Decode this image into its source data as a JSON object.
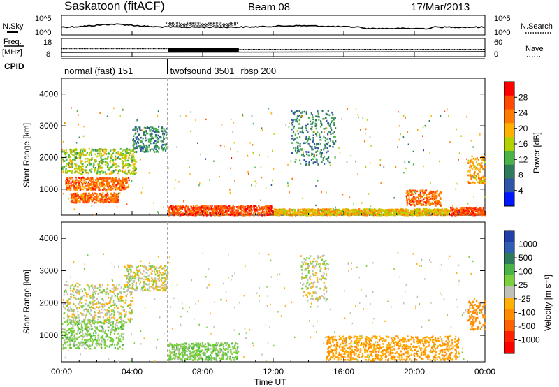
{
  "header": {
    "title": "Saskatoon (fitACF)",
    "beam": "Beam 08",
    "date": "17/Mar/2013"
  },
  "top_panel": {
    "left_label": "N.Sky",
    "left_ticks": [
      "10^5",
      "10^0"
    ],
    "right_ticks": [
      "10^5",
      "10^0"
    ],
    "right_label": "N.Search"
  },
  "freq_panel": {
    "left_label_1": "Freq.",
    "left_label_2": "[MHz]",
    "left_ticks": [
      "18",
      "8"
    ],
    "right_ticks": [
      "60",
      "0"
    ],
    "right_label": "Nave"
  },
  "cpid": {
    "label": "CPID",
    "segments": [
      {
        "name": "normal (fast) 151",
        "start_hour": 0
      },
      {
        "name": "twofsound 3501",
        "start_hour": 6
      },
      {
        "name": "rbsp 200",
        "start_hour": 10
      }
    ]
  },
  "power_panel": {
    "ylabel": "Slant Range [km]",
    "yticks": [
      "1000",
      "2000",
      "3000",
      "4000"
    ],
    "colorbar_label": "Power [dB]",
    "colorbar_ticks": [
      "28",
      "24",
      "20",
      "16",
      "12",
      "8",
      "4"
    ],
    "colors": [
      "#ff0000",
      "#ff4a00",
      "#ff7a00",
      "#ffb000",
      "#b2d200",
      "#49b34a",
      "#2e7a5a",
      "#2f55a6",
      "#0016ff"
    ]
  },
  "velocity_panel": {
    "ylabel": "Slant Range [km]",
    "yticks": [
      "1000",
      "2000",
      "3000",
      "4000"
    ],
    "colorbar_label": "Velocity [m s⁻¹]",
    "colorbar_ticks": [
      "1000",
      "500",
      "100",
      "25",
      "-25",
      "-100",
      "-500",
      "-1000"
    ],
    "colors": [
      "#2040a8",
      "#2f5eb2",
      "#2e7a5a",
      "#49b34a",
      "#7ad03a",
      "#c0c0b8",
      "#ffb000",
      "#ff8c00",
      "#ff6000",
      "#ff2000",
      "#ff0000"
    ]
  },
  "x_axis": {
    "ticks": [
      "00:00",
      "04:00",
      "08:00",
      "12:00",
      "16:00",
      "20:00",
      "00:00"
    ],
    "label": "Time UT"
  },
  "chart_data": [
    {
      "type": "heatmap",
      "quantity": "Power [dB]",
      "x_range_hours": [
        0,
        24
      ],
      "y_range_km": [
        180,
        4500
      ],
      "clim": [
        0,
        30
      ],
      "approx_regions": [
        {
          "t": [
            0.2,
            3.8
          ],
          "r": [
            1000,
            1400
          ],
          "level_db": 24
        },
        {
          "t": [
            0.5,
            3.2
          ],
          "r": [
            600,
            900
          ],
          "level_db": 24
        },
        {
          "t": [
            0.0,
            4.2
          ],
          "r": [
            1500,
            2300
          ],
          "level_db": 14
        },
        {
          "t": [
            4.0,
            6.0
          ],
          "r": [
            2200,
            3000
          ],
          "level_db": 8
        },
        {
          "t": [
            6.0,
            12.0
          ],
          "r": [
            200,
            500
          ],
          "level_db": 26
        },
        {
          "t": [
            12.0,
            22.0
          ],
          "r": [
            200,
            400
          ],
          "level_db": 18
        },
        {
          "t": [
            13.0,
            15.5
          ],
          "r": [
            1800,
            3500
          ],
          "level_db": 8
        },
        {
          "t": [
            19.5,
            21.5
          ],
          "r": [
            500,
            1000
          ],
          "level_db": 24
        },
        {
          "t": [
            23.0,
            24.0
          ],
          "r": [
            1200,
            2100
          ],
          "level_db": 20
        },
        {
          "t": [
            22.0,
            24.0
          ],
          "r": [
            200,
            450
          ],
          "level_db": 26
        }
      ]
    },
    {
      "type": "heatmap",
      "quantity": "Velocity [m s-1]",
      "x_range_hours": [
        0,
        24
      ],
      "y_range_km": [
        180,
        4500
      ],
      "clim": [
        -1000,
        1000
      ],
      "approx_regions": [
        {
          "t": [
            0.0,
            4.0
          ],
          "r": [
            1400,
            2600
          ],
          "level": 0
        },
        {
          "t": [
            0.0,
            3.5
          ],
          "r": [
            600,
            1500
          ],
          "level": 60
        },
        {
          "t": [
            3.5,
            6.0
          ],
          "r": [
            2400,
            3200
          ],
          "level": 0
        },
        {
          "t": [
            6.0,
            10.0
          ],
          "r": [
            250,
            800
          ],
          "level": 60
        },
        {
          "t": [
            13.5,
            15.0
          ],
          "r": [
            2100,
            3500
          ],
          "level": 0
        },
        {
          "t": [
            15.0,
            22.5
          ],
          "r": [
            250,
            1000
          ],
          "level": -100
        },
        {
          "t": [
            23.0,
            24.0
          ],
          "r": [
            1200,
            2100
          ],
          "level": -200
        }
      ]
    }
  ]
}
